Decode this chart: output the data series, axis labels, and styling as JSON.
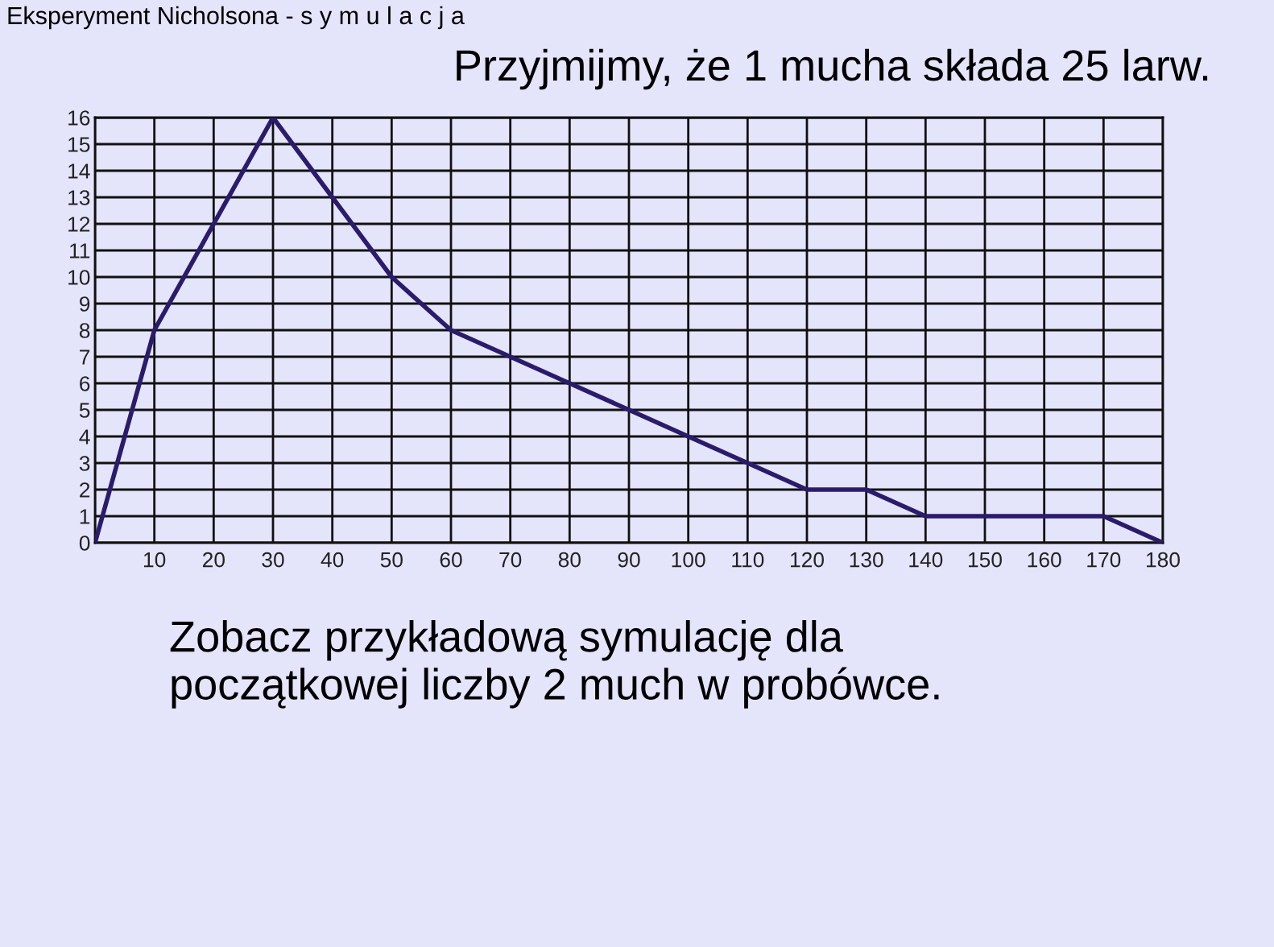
{
  "chart_data": {
    "type": "line",
    "title": "Eksperyment Nicholsona - s y m u l a c j a",
    "subtitle": "Przyjmijmy, że 1 mucha składa 25 larw.",
    "annotations": [
      "Zobacz przykładową symulację dla początkowej liczby 2 much w probówce."
    ],
    "x": [
      0,
      10,
      20,
      30,
      40,
      50,
      60,
      70,
      80,
      90,
      100,
      110,
      120,
      130,
      140,
      150,
      160,
      170,
      180
    ],
    "series": [
      {
        "color": "#2a1b6b",
        "values": [
          0,
          8,
          12,
          16,
          13,
          10,
          8,
          7,
          6,
          5,
          4,
          3,
          2,
          2,
          1,
          1,
          1,
          1,
          0
        ]
      }
    ],
    "xlim": [
      0,
      180
    ],
    "ylim": [
      0,
      16
    ],
    "xticks": [
      {
        "value": 0,
        "label": null
      },
      10,
      20,
      30,
      40,
      50,
      60,
      70,
      80,
      90,
      100,
      110,
      120,
      130,
      140,
      150,
      160,
      170,
      180
    ],
    "yticks": [
      0,
      1,
      2,
      3,
      4,
      5,
      6,
      7,
      8,
      9,
      10,
      11,
      12,
      13,
      14,
      15,
      16
    ],
    "grid": true,
    "line_style": "solid"
  }
}
